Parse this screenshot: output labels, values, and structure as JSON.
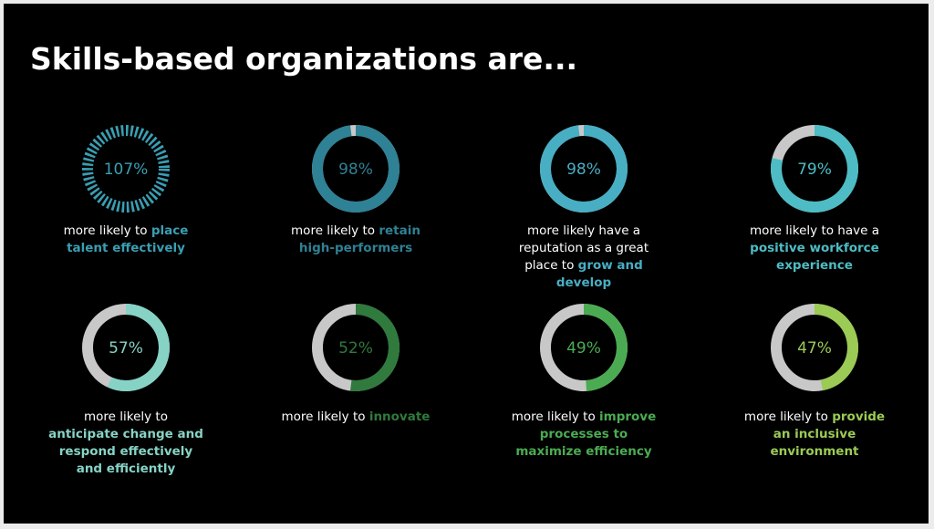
{
  "chart_data": {
    "type": "donut",
    "title": "Skills-based organizations are...",
    "values": [
      107,
      98,
      98,
      79,
      57,
      52,
      49,
      47
    ],
    "value_labels": [
      "107%",
      "98%",
      "98%",
      "79%",
      "57%",
      "52%",
      "49%",
      "47%"
    ],
    "colors": [
      "#3a9fb3",
      "#2f8195",
      "#48aec3",
      "#4dbcc4",
      "#86d3c6",
      "#2f7a3c",
      "#4bab52",
      "#9bca55"
    ],
    "track_color": "#c8c8c8",
    "descriptions": [
      {
        "text": "more likely to",
        "highlight": "place talent effectively"
      },
      {
        "text": "more likely to",
        "highlight": "retain high-performers"
      },
      {
        "text": "more likely have a reputation as a great place to",
        "highlight": "grow and develop"
      },
      {
        "text": "more likely to have a",
        "highlight": "positive workforce experience"
      },
      {
        "text": "more likely to",
        "highlight": "anticipate change and respond effectively and efficiently"
      },
      {
        "text": "more likely to",
        "highlight": "innovate"
      },
      {
        "text": "more likely to",
        "highlight": "improve processes to maximize efficiency"
      },
      {
        "text": "more likely to",
        "highlight": "provide an inclusive environment"
      }
    ]
  }
}
